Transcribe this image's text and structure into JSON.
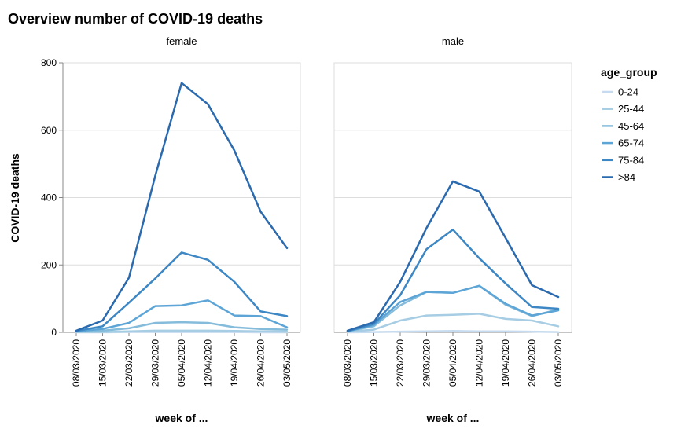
{
  "chart_data": {
    "type": "line",
    "title": "Overview number of COVID-19 deaths",
    "xlabel": "week of ...",
    "ylabel": "COVID-19 deaths",
    "ylim": [
      0,
      800
    ],
    "yticks": [
      0,
      200,
      400,
      600,
      800
    ],
    "grid": true,
    "legend": {
      "title": "age_group",
      "placement": "right"
    },
    "x": [
      "08/03/2020",
      "15/03/2020",
      "22/03/2020",
      "29/03/2020",
      "05/04/2020",
      "12/04/2020",
      "19/04/2020",
      "26/04/2020",
      "03/05/2020"
    ],
    "age_groups": [
      {
        "name": "0-24",
        "color": "#c6dbef"
      },
      {
        "name": "25-44",
        "color": "#a6cde3"
      },
      {
        "name": "45-64",
        "color": "#85bcdb"
      },
      {
        "name": "65-74",
        "color": "#5da5d6"
      },
      {
        "name": "75-84",
        "color": "#3d87c4"
      },
      {
        "name": ">84",
        "color": "#2b6aae"
      }
    ],
    "facets": [
      {
        "name": "female",
        "series": [
          {
            "name": "0-24",
            "values": [
              0,
              0,
              1,
              1,
              1,
              1,
              1,
              0,
              0
            ]
          },
          {
            "name": "25-44",
            "values": [
              1,
              1,
              3,
              5,
              5,
              5,
              4,
              3,
              2
            ]
          },
          {
            "name": "45-64",
            "values": [
              2,
              5,
              12,
              28,
              30,
              28,
              15,
              10,
              8
            ]
          },
          {
            "name": "65-74",
            "values": [
              3,
              10,
              28,
              78,
              80,
              95,
              50,
              48,
              15
            ]
          },
          {
            "name": "75-84",
            "values": [
              4,
              18,
              88,
              160,
              237,
              215,
              150,
              62,
              48
            ]
          },
          {
            "name": ">84",
            "values": [
              5,
              35,
              162,
              465,
              740,
              677,
              540,
              358,
              250
            ]
          }
        ]
      },
      {
        "name": "male",
        "series": [
          {
            "name": "0-24",
            "values": [
              0,
              1,
              2,
              3,
              4,
              3,
              3,
              2,
              1
            ]
          },
          {
            "name": "25-44",
            "values": [
              2,
              8,
              35,
              50,
              52,
              55,
              40,
              35,
              18
            ]
          },
          {
            "name": "45-64",
            "values": [
              3,
              18,
              80,
              120,
              117,
              138,
              82,
              48,
              68
            ]
          },
          {
            "name": "65-74",
            "values": [
              3,
              22,
              90,
              120,
              117,
              138,
              85,
              50,
              65
            ]
          },
          {
            "name": "75-84",
            "values": [
              4,
              25,
              110,
              247,
              305,
              220,
              145,
              75,
              70
            ]
          },
          {
            "name": ">84",
            "values": [
              5,
              30,
              150,
              310,
              448,
              418,
              280,
              140,
              105
            ]
          }
        ]
      }
    ]
  }
}
